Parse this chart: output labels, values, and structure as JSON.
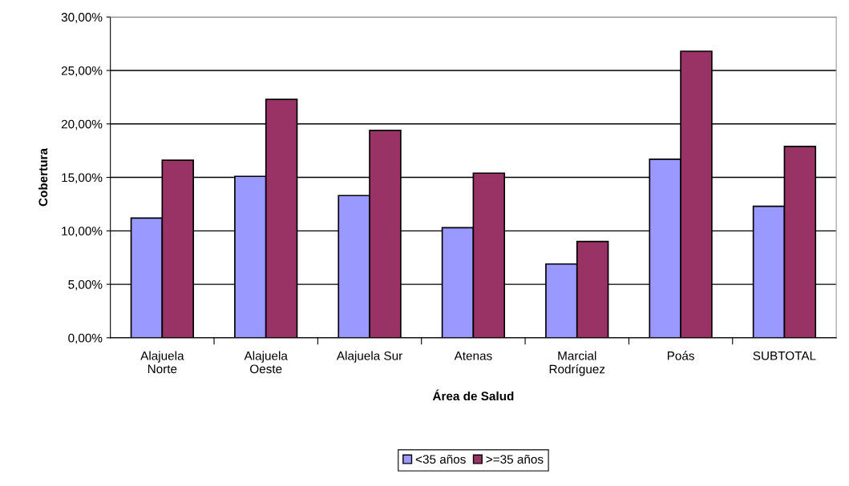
{
  "chart_data": {
    "type": "bar",
    "xlabel": "Área de Salud",
    "ylabel": "Cobertura",
    "categories": [
      "Alajuela\nNorte",
      "Alajuela\nOeste",
      "Alajuela Sur",
      "Atenas",
      "Marcial\nRodríguez",
      "Poás",
      "SUBTOTAL"
    ],
    "series": [
      {
        "name": "<35 años",
        "color": "#9999ff",
        "values": [
          11.2,
          15.1,
          13.3,
          10.3,
          6.9,
          16.7,
          12.3
        ]
      },
      {
        "name": ">=35 años",
        "color": "#993366",
        "values": [
          16.6,
          22.3,
          19.4,
          15.4,
          9.0,
          26.8,
          17.9
        ]
      }
    ],
    "ylim": [
      0,
      30
    ],
    "yticks": [
      {
        "value": 0,
        "label": "0,00%"
      },
      {
        "value": 5,
        "label": "5,00%"
      },
      {
        "value": 10,
        "label": "10,00%"
      },
      {
        "value": 15,
        "label": "15,00%"
      },
      {
        "value": 20,
        "label": "20,00%"
      },
      {
        "value": 25,
        "label": "25,00%"
      },
      {
        "value": 30,
        "label": "30,00%"
      }
    ],
    "grid": "y",
    "legend": "bottom"
  }
}
